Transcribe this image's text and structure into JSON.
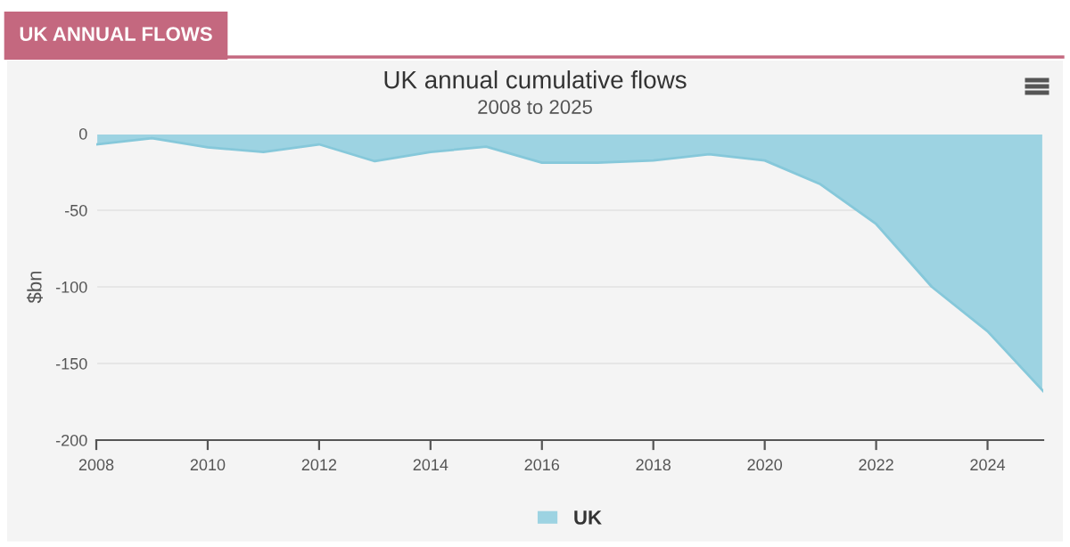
{
  "chart_data": {
    "type": "area",
    "title": "UK annual cumulative flows",
    "subtitle": "2008 to 2025",
    "ylabel": "$bn",
    "annotations": [
      "UK ANNUAL FLOWS"
    ],
    "x": [
      2008,
      2009,
      2010,
      2011,
      2012,
      2013,
      2014,
      2015,
      2016,
      2017,
      2018,
      2019,
      2020,
      2021,
      2022,
      2023,
      2024,
      2025
    ],
    "series": [
      {
        "name": "UK",
        "color": "#9dd3e2",
        "values": [
          -7,
          -3,
          -9,
          -12,
          -7,
          -18,
          -12,
          -8.5,
          -19,
          -19,
          -17.5,
          -13.5,
          -17.5,
          -33,
          -59,
          -100,
          -129,
          -168
        ]
      }
    ],
    "xlim": [
      2008,
      2025
    ],
    "xticks": [
      2008,
      2010,
      2012,
      2014,
      2016,
      2018,
      2020,
      2022,
      2024
    ],
    "ylim": [
      -200,
      0
    ],
    "yticks": [
      -200,
      -150,
      -100,
      -50,
      0
    ],
    "grid": "y",
    "legend": "bottom"
  }
}
